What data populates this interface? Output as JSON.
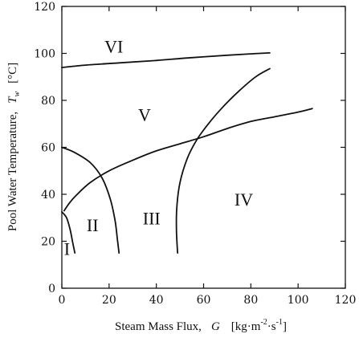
{
  "chart_data": {
    "type": "line",
    "xlabel": {
      "text": "Steam Mass Flux,",
      "symbol": "G",
      "unit": "[kg·m",
      "unit_exp1": "-2",
      "unit_mid": "·s",
      "unit_exp2": "-1",
      "unit_close": "]"
    },
    "ylabel": {
      "text": "Pool Water Temperature,",
      "symbol": "T",
      "subscript": "w",
      "unit": "[°C]"
    },
    "xlim": [
      0,
      120
    ],
    "ylim": [
      0,
      120
    ],
    "xticks": [
      0,
      20,
      40,
      60,
      80,
      100,
      120
    ],
    "yticks": [
      0,
      20,
      40,
      60,
      80,
      100,
      120
    ],
    "grid": false,
    "regions": [
      {
        "label": "I",
        "x": 2.2,
        "y": 17
      },
      {
        "label": "II",
        "x": 13,
        "y": 27
      },
      {
        "label": "III",
        "x": 38,
        "y": 30
      },
      {
        "label": "IV",
        "x": 77,
        "y": 38
      },
      {
        "label": "V",
        "x": 35,
        "y": 74
      },
      {
        "label": "VI",
        "x": 22,
        "y": 103
      }
    ],
    "series": [
      {
        "points": [
          [
            0,
            94
          ],
          [
            10,
            95
          ],
          [
            25,
            96
          ],
          [
            40,
            97
          ],
          [
            55,
            98.2
          ],
          [
            70,
            99.2
          ],
          [
            80,
            99.8
          ],
          [
            88,
            100.2
          ]
        ]
      },
      {
        "points": [
          [
            0,
            60
          ],
          [
            5,
            58
          ],
          [
            12,
            53.5
          ],
          [
            17,
            47
          ],
          [
            20.5,
            38
          ],
          [
            22.5,
            29
          ],
          [
            23.5,
            21
          ],
          [
            24.2,
            15
          ]
        ]
      },
      {
        "points": [
          [
            0,
            32.5
          ],
          [
            2,
            30
          ],
          [
            3.5,
            25
          ],
          [
            4.5,
            20
          ],
          [
            5.5,
            15
          ]
        ]
      },
      {
        "points": [
          [
            1,
            33
          ],
          [
            3,
            36
          ],
          [
            6,
            39.5
          ],
          [
            12,
            45
          ],
          [
            20,
            50
          ],
          [
            30,
            54.5
          ],
          [
            40,
            58.5
          ],
          [
            50,
            61.5
          ],
          [
            60,
            64.5
          ],
          [
            70,
            68
          ],
          [
            80,
            71
          ],
          [
            90,
            73
          ],
          [
            100,
            75
          ],
          [
            106,
            76.5
          ]
        ]
      },
      {
        "points": [
          [
            49,
            15
          ],
          [
            48.5,
            25
          ],
          [
            48.7,
            35
          ],
          [
            50,
            45
          ],
          [
            53,
            55
          ],
          [
            57,
            63
          ],
          [
            62,
            70
          ],
          [
            68,
            77
          ],
          [
            75,
            84
          ],
          [
            82,
            90
          ],
          [
            88,
            93.5
          ]
        ]
      }
    ]
  }
}
